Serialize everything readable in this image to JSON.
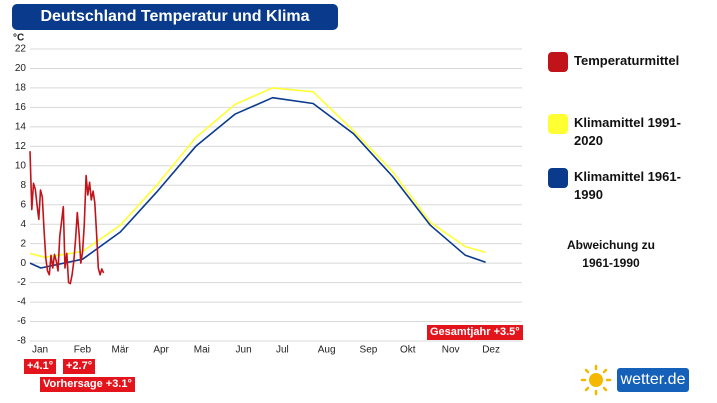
{
  "chart_data": {
    "type": "line",
    "title": "Deutschland Temperatur und Klima",
    "y_label": "°C",
    "xlim": [
      0,
      365
    ],
    "xticks": [
      {
        "value": 0,
        "label": "Jan"
      },
      {
        "value": 31,
        "label": "Feb"
      },
      {
        "value": 59,
        "label": "Mär"
      },
      {
        "value": 90,
        "label": "Apr"
      },
      {
        "value": 120,
        "label": "Mai"
      },
      {
        "value": 151,
        "label": "Jun"
      },
      {
        "value": 181,
        "label": "Jul"
      },
      {
        "value": 212,
        "label": "Aug"
      },
      {
        "value": 243,
        "label": "Sep"
      },
      {
        "value": 273,
        "label": "Okt"
      },
      {
        "value": 304,
        "label": "Nov"
      },
      {
        "value": 334,
        "label": "Dez"
      }
    ],
    "ylim": [
      -8,
      22
    ],
    "yticks": [
      -8,
      -6,
      -4,
      -2,
      0,
      2,
      4,
      6,
      8,
      10,
      12,
      14,
      16,
      18,
      20,
      22
    ],
    "grid": true,
    "series": [
      {
        "name": "Klimamittel 1991-2020",
        "color": "#ffff33",
        "x": [
          0,
          11,
          39,
          67,
          94,
          123,
          152,
          180,
          210,
          240,
          269,
          297,
          323,
          338
        ],
        "values": [
          1.0,
          0.6,
          1.2,
          3.9,
          8.0,
          12.9,
          16.3,
          18.0,
          17.6,
          13.6,
          9.4,
          4.2,
          1.7,
          1.1
        ]
      },
      {
        "name": "Klimamittel 1961-1990",
        "color": "#0a3a8c",
        "x": [
          0,
          8,
          39,
          67,
          94,
          123,
          152,
          180,
          210,
          240,
          269,
          297,
          323,
          338
        ],
        "values": [
          0.0,
          -0.5,
          0.4,
          3.2,
          7.3,
          12.0,
          15.3,
          17.0,
          16.4,
          13.3,
          8.9,
          3.9,
          0.8,
          0.1
        ]
      },
      {
        "name": "Temperaturmittel",
        "color": "#c0141a",
        "x": [
          0,
          1.3,
          2.6,
          3.9,
          5.2,
          6.5,
          7.8,
          9.1,
          10.4,
          11.7,
          13,
          14.3,
          15.6,
          16.9,
          18.2,
          19.5,
          20.8,
          22.1,
          23.4,
          24.7,
          26,
          27.3,
          28.6,
          29.9,
          31.2,
          32.5,
          33.8,
          35.1,
          36.4,
          37.7,
          39,
          40.3,
          41.6,
          42.9,
          44.2,
          45.5,
          46.8,
          48.1,
          49.4,
          50.7,
          52,
          53.3,
          54.6
        ],
        "values": [
          11.5,
          5.5,
          8.2,
          7.6,
          6.0,
          4.5,
          7.5,
          6.8,
          3.5,
          0.5,
          -0.8,
          -1.2,
          0.8,
          -0.5,
          0.9,
          0.2,
          -0.8,
          2.8,
          4.2,
          5.8,
          -0.5,
          1.0,
          -2.0,
          -2.1,
          -1.2,
          0.2,
          2.5,
          5.2,
          3.0,
          0.0,
          1.2,
          4.0,
          9.0,
          7.0,
          8.3,
          6.5,
          7.4,
          6.2,
          3.0,
          -0.5,
          -1.2,
          -0.6,
          -1.0
        ]
      }
    ],
    "legend_order": [
      2,
      0,
      1
    ],
    "note": "Abweichung zu 1961-1990",
    "annotations": [
      "Gesamtjahr +3.5°",
      "+4.1°",
      "+2.7°",
      "Vorhersage +3.1°"
    ],
    "brand": "wetter.de"
  }
}
